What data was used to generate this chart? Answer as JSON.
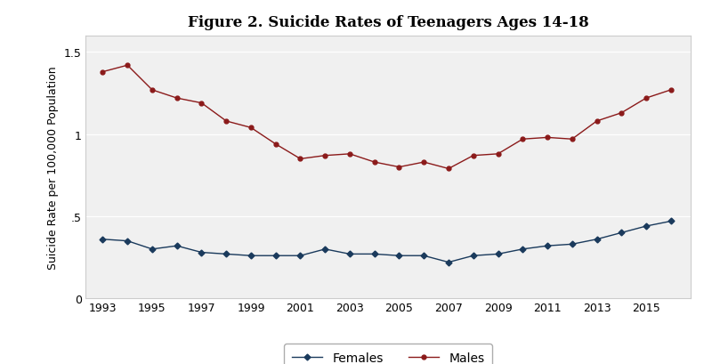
{
  "title": "Figure 2. Suicide Rates of Teenagers Ages 14-18",
  "ylabel": "Suicide Rate per 100,000 Population",
  "years": [
    1993,
    1994,
    1995,
    1996,
    1997,
    1998,
    1999,
    2000,
    2001,
    2002,
    2003,
    2004,
    2005,
    2006,
    2007,
    2008,
    2009,
    2010,
    2011,
    2012,
    2013,
    2014,
    2015,
    2016
  ],
  "males": [
    1.38,
    1.42,
    1.27,
    1.22,
    1.19,
    1.08,
    1.04,
    0.94,
    0.85,
    0.87,
    0.88,
    0.83,
    0.8,
    0.83,
    0.79,
    0.87,
    0.88,
    0.97,
    0.98,
    0.97,
    1.08,
    1.13,
    1.22,
    1.27
  ],
  "females": [
    0.36,
    0.35,
    0.3,
    0.32,
    0.28,
    0.27,
    0.26,
    0.26,
    0.26,
    0.3,
    0.27,
    0.27,
    0.26,
    0.26,
    0.22,
    0.26,
    0.27,
    0.3,
    0.32,
    0.33,
    0.36,
    0.4,
    0.44,
    0.47
  ],
  "male_color": "#8B1A1A",
  "female_color": "#1a3a5c",
  "ylim": [
    0,
    1.6
  ],
  "yticks": [
    0,
    0.5,
    1.0,
    1.5
  ],
  "ytick_labels": [
    "0",
    ".5",
    "1",
    "1.5"
  ],
  "xticks": [
    1993,
    1995,
    1997,
    1999,
    2001,
    2003,
    2005,
    2007,
    2009,
    2011,
    2013,
    2015
  ],
  "background_color": "#ffffff",
  "plot_bg_color": "#f0f0f0",
  "grid_color": "#ffffff",
  "title_fontsize": 12,
  "axis_fontsize": 9,
  "tick_fontsize": 9
}
